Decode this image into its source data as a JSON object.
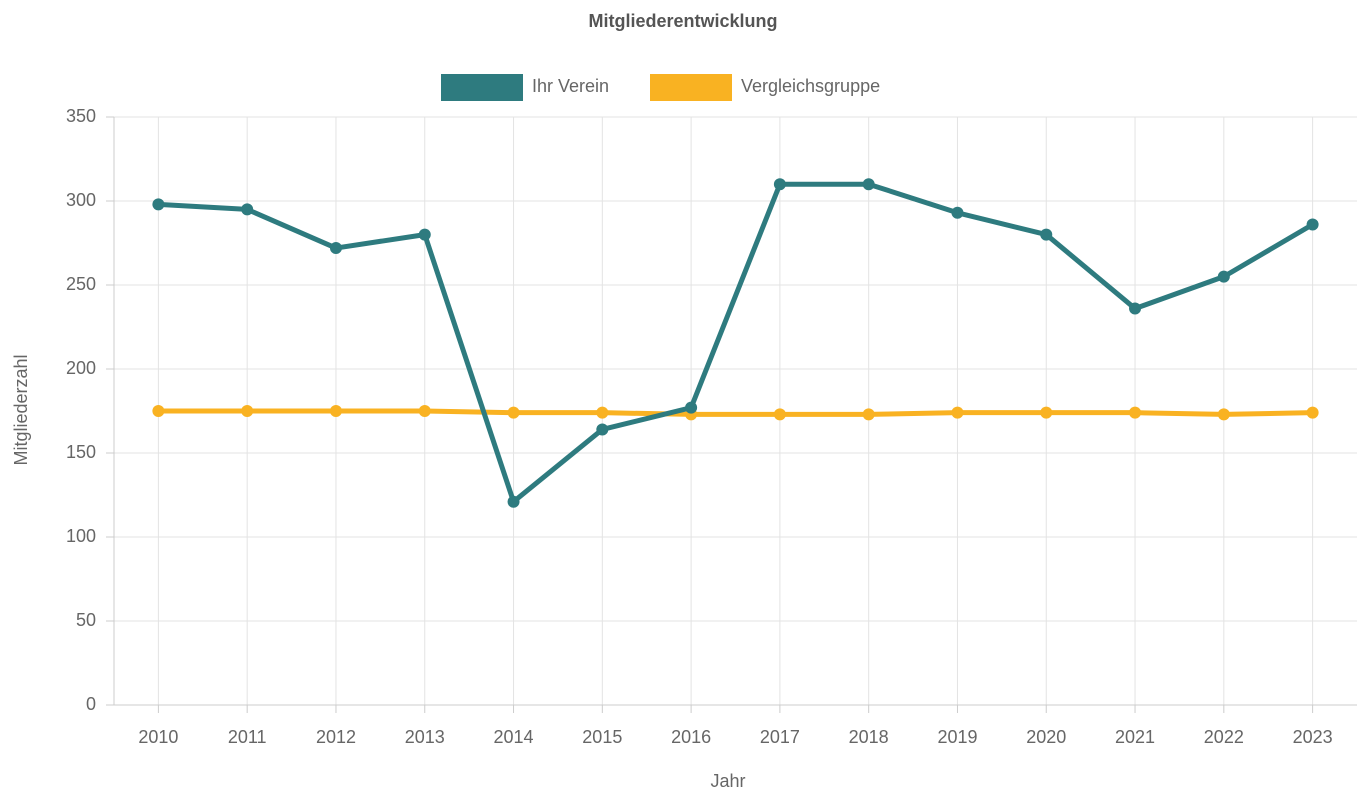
{
  "chart_data": {
    "type": "line",
    "title": "Mitgliederentwicklung",
    "x_label": "Jahr",
    "y_label": "Mitgliederzahl",
    "categories": [
      "2010",
      "2011",
      "2012",
      "2013",
      "2014",
      "2015",
      "2016",
      "2017",
      "2018",
      "2019",
      "2020",
      "2021",
      "2022",
      "2023"
    ],
    "series": [
      {
        "name": "Ihr Verein",
        "color": "#2e7b7f",
        "values": [
          298,
          295,
          272,
          280,
          121,
          164,
          177,
          310,
          310,
          293,
          280,
          236,
          255,
          286
        ]
      },
      {
        "name": "Vergleichsgruppe",
        "color": "#f9b222",
        "values": [
          175,
          175,
          175,
          175,
          174,
          174,
          173,
          173,
          173,
          174,
          174,
          174,
          173,
          174
        ]
      }
    ],
    "ylim": [
      0,
      350
    ],
    "yticks": [
      0,
      50,
      100,
      150,
      200,
      250,
      300,
      350
    ],
    "grid": true,
    "legend": "top"
  }
}
